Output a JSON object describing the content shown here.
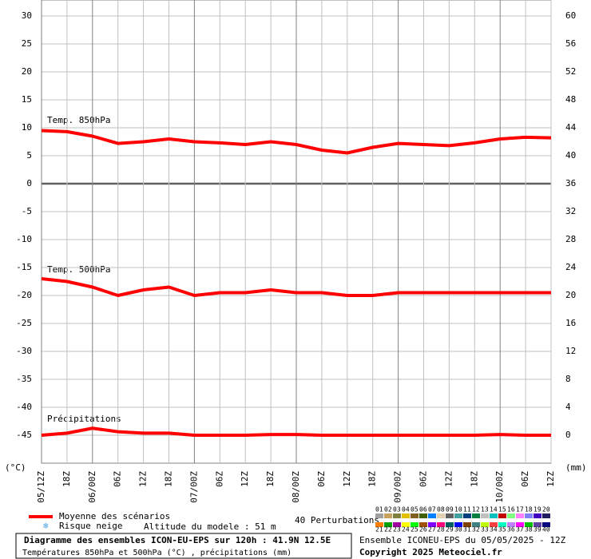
{
  "chart_data": {
    "type": "line",
    "y_unit_label": "(°C)",
    "y2_unit_label": "(mm)",
    "x": [
      0,
      6,
      12,
      18,
      24,
      30,
      36,
      42,
      48,
      54,
      60,
      66,
      72,
      78,
      84,
      90,
      96,
      102,
      108,
      114,
      120
    ],
    "xlim": [
      0,
      120
    ],
    "xticks": [
      {
        "value": 0,
        "label": "05/12Z"
      },
      {
        "value": 6,
        "label": "18Z"
      },
      {
        "value": 12,
        "label": "06/00Z"
      },
      {
        "value": 18,
        "label": "06Z"
      },
      {
        "value": 24,
        "label": "12Z"
      },
      {
        "value": 30,
        "label": "18Z"
      },
      {
        "value": 36,
        "label": "07/00Z"
      },
      {
        "value": 42,
        "label": "06Z"
      },
      {
        "value": 48,
        "label": "12Z"
      },
      {
        "value": 54,
        "label": "18Z"
      },
      {
        "value": 60,
        "label": "08/00Z"
      },
      {
        "value": 66,
        "label": "06Z"
      },
      {
        "value": 72,
        "label": "12Z"
      },
      {
        "value": 78,
        "label": "18Z"
      },
      {
        "value": 84,
        "label": "09/00Z"
      },
      {
        "value": 90,
        "label": "06Z"
      },
      {
        "value": 96,
        "label": "12Z"
      },
      {
        "value": 102,
        "label": "18Z"
      },
      {
        "value": 108,
        "label": "10/00Z"
      },
      {
        "value": 114,
        "label": "06Z"
      },
      {
        "value": 120,
        "label": "12Z"
      }
    ],
    "ylim": [
      -50,
      30
    ],
    "yticks": [
      -45,
      -40,
      -35,
      -30,
      -25,
      -20,
      -15,
      -10,
      -5,
      0,
      5,
      10,
      15,
      20,
      25,
      30
    ],
    "y2lim": [
      -4,
      60
    ],
    "y2ticks": [
      0,
      4,
      8,
      12,
      16,
      20,
      24,
      28,
      32,
      36,
      40,
      44,
      48,
      52,
      56,
      60
    ],
    "grid": true,
    "annotations": [
      "Temp. 850hPa",
      "Temp. 500hPa",
      "Précipitations"
    ],
    "series": [
      {
        "name": "Moyenne des scénarios",
        "color": "#ff0000",
        "values": [
          9.5,
          9.3,
          8.5,
          7.2,
          7.5,
          8,
          7.5,
          7.3,
          7,
          7.5,
          7,
          6,
          5.5,
          6.5,
          7.2,
          7,
          6.8,
          7.3,
          8,
          8.3,
          8.2
        ]
      },
      {
        "color": "#ff0000",
        "values": [
          -17,
          -17.5,
          -18.5,
          -20,
          -19,
          -18.5,
          -20,
          -19.5,
          -19.5,
          -19,
          -19.5,
          -19.5,
          -20,
          -20,
          -19.5,
          -19.5,
          -19.5,
          -19.5,
          -19.5,
          -19.5,
          -19.5
        ]
      },
      {
        "color": "#ff0000",
        "axis": "y2",
        "values": [
          0,
          0.3,
          1,
          0.5,
          0.3,
          0.3,
          0,
          0,
          0,
          0.1,
          0.1,
          0,
          0,
          0,
          0,
          0,
          0,
          0,
          0.1,
          0,
          0
        ]
      }
    ],
    "legend": {
      "snow": "Risque neige",
      "altitude": "Altitude du modele : 51 m",
      "perturbations_title": "40 Perturbations"
    },
    "perturbations": [
      {
        "label": "01",
        "color": "#a0a0a0"
      },
      {
        "label": "02",
        "color": "#c8a060"
      },
      {
        "label": "03",
        "color": "#808040"
      },
      {
        "label": "04",
        "color": "#e0c000"
      },
      {
        "label": "05",
        "color": "#806020"
      },
      {
        "label": "06",
        "color": "#406000"
      },
      {
        "label": "07",
        "color": "#0080ff"
      },
      {
        "label": "08",
        "color": "#e0d0b0"
      },
      {
        "label": "09",
        "color": "#606060"
      },
      {
        "label": "10",
        "color": "#40a0a0"
      },
      {
        "label": "11",
        "color": "#004080"
      },
      {
        "label": "12",
        "color": "#008040"
      },
      {
        "label": "13",
        "color": "#c0c0c0"
      },
      {
        "label": "14",
        "color": "#00c0c0"
      },
      {
        "label": "15",
        "color": "#c00000"
      },
      {
        "label": "16",
        "color": "#80ff80"
      },
      {
        "label": "17",
        "color": "#ff80ff"
      },
      {
        "label": "18",
        "color": "#8080ff"
      },
      {
        "label": "19",
        "color": "#4000c0"
      },
      {
        "label": "20",
        "color": "#202060"
      },
      {
        "label": "21",
        "color": "#ff8000"
      },
      {
        "label": "22",
        "color": "#00a000"
      },
      {
        "label": "23",
        "color": "#a000a0"
      },
      {
        "label": "24",
        "color": "#ffff00"
      },
      {
        "label": "25",
        "color": "#00ff00"
      },
      {
        "label": "26",
        "color": "#a05000"
      },
      {
        "label": "27",
        "color": "#8000ff"
      },
      {
        "label": "28",
        "color": "#ff0080"
      },
      {
        "label": "29",
        "color": "#006060"
      },
      {
        "label": "30",
        "color": "#0000ff"
      },
      {
        "label": "31",
        "color": "#804000"
      },
      {
        "label": "32",
        "color": "#408080"
      },
      {
        "label": "33",
        "color": "#c0ff00"
      },
      {
        "label": "34",
        "color": "#ff4040"
      },
      {
        "label": "35",
        "color": "#00ffc0"
      },
      {
        "label": "36",
        "color": "#c080ff"
      },
      {
        "label": "37",
        "color": "#ff00ff"
      },
      {
        "label": "38",
        "color": "#00c000"
      },
      {
        "label": "39",
        "color": "#6040a0"
      },
      {
        "label": "40",
        "color": "#000080"
      }
    ],
    "footer": {
      "title": "Diagramme des ensembles ICON-EU-EPS sur 120h : 41.9N 12.5E",
      "subtitle": "Températures 850hPa et 500hPa (°C) , précipitations (mm)",
      "run": "Ensemble ICONEU-EPS du 05/05/2025 - 12Z",
      "copyright": "Copyright 2025 Meteociel.fr"
    }
  }
}
